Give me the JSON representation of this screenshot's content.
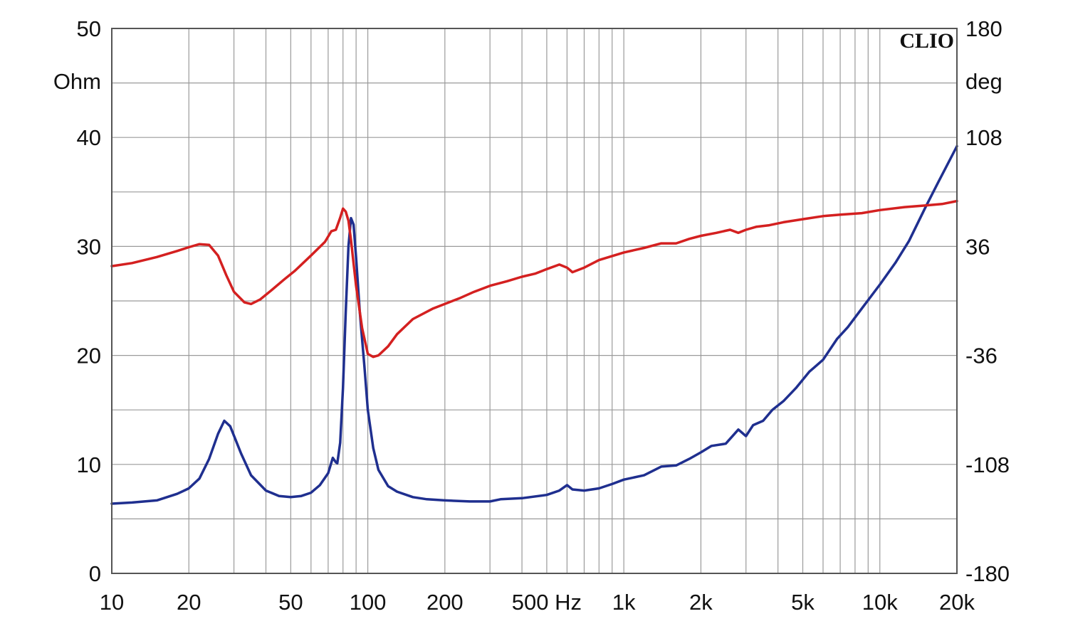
{
  "chart_data": {
    "type": "line",
    "watermark": "CLIO",
    "x_scale": "log",
    "xlim": [
      10,
      20000
    ],
    "x_ticks": [
      {
        "value": 10,
        "label": "10"
      },
      {
        "value": 20,
        "label": "20"
      },
      {
        "value": 50,
        "label": "50"
      },
      {
        "value": 100,
        "label": "100"
      },
      {
        "value": 200,
        "label": "200"
      },
      {
        "value": 500,
        "label": "500 Hz"
      },
      {
        "value": 1000,
        "label": "1k"
      },
      {
        "value": 2000,
        "label": "2k"
      },
      {
        "value": 5000,
        "label": "5k"
      },
      {
        "value": 10000,
        "label": "10k"
      },
      {
        "value": 20000,
        "label": "20k"
      }
    ],
    "y_left": {
      "unit_label": "Ohm",
      "ylim": [
        0,
        50
      ],
      "ticks": [
        0,
        10,
        20,
        30,
        40,
        50
      ],
      "labels": [
        "0",
        "10",
        "20",
        "30",
        "40",
        "50"
      ]
    },
    "y_right": {
      "unit_label": "deg",
      "ylim": [
        -180,
        180
      ],
      "ticks": [
        -180,
        -108,
        -36,
        36,
        108,
        180
      ],
      "labels": [
        "-180",
        "-108",
        "-36",
        "36",
        "108",
        "180"
      ]
    },
    "grid": true,
    "series": [
      {
        "axis": "left",
        "color": "#1f2f8f",
        "points": [
          [
            10,
            6.4
          ],
          [
            12,
            6.5
          ],
          [
            15,
            6.7
          ],
          [
            18,
            7.3
          ],
          [
            20,
            7.8
          ],
          [
            22,
            8.7
          ],
          [
            24,
            10.5
          ],
          [
            26,
            12.8
          ],
          [
            27.5,
            14
          ],
          [
            29,
            13.5
          ],
          [
            32,
            11
          ],
          [
            35,
            9
          ],
          [
            40,
            7.6
          ],
          [
            45,
            7.1
          ],
          [
            50,
            7
          ],
          [
            55,
            7.1
          ],
          [
            60,
            7.4
          ],
          [
            65,
            8.1
          ],
          [
            70,
            9.2
          ],
          [
            73,
            10.6
          ],
          [
            75,
            10.2
          ],
          [
            76,
            10.1
          ],
          [
            78,
            12
          ],
          [
            80,
            17
          ],
          [
            82,
            24
          ],
          [
            84,
            30
          ],
          [
            86,
            32.6
          ],
          [
            88,
            32
          ],
          [
            90,
            29
          ],
          [
            93,
            24
          ],
          [
            97,
            19
          ],
          [
            100,
            15
          ],
          [
            105,
            11.5
          ],
          [
            110,
            9.5
          ],
          [
            120,
            8
          ],
          [
            130,
            7.5
          ],
          [
            150,
            7
          ],
          [
            170,
            6.8
          ],
          [
            200,
            6.7
          ],
          [
            250,
            6.6
          ],
          [
            300,
            6.6
          ],
          [
            330,
            6.8
          ],
          [
            400,
            6.9
          ],
          [
            500,
            7.2
          ],
          [
            560,
            7.6
          ],
          [
            600,
            8.1
          ],
          [
            630,
            7.7
          ],
          [
            700,
            7.6
          ],
          [
            800,
            7.8
          ],
          [
            900,
            8.2
          ],
          [
            1000,
            8.6
          ],
          [
            1200,
            9
          ],
          [
            1400,
            9.8
          ],
          [
            1600,
            9.9
          ],
          [
            1800,
            10.5
          ],
          [
            2000,
            11.1
          ],
          [
            2200,
            11.7
          ],
          [
            2500,
            11.9
          ],
          [
            2800,
            13.2
          ],
          [
            3000,
            12.6
          ],
          [
            3200,
            13.6
          ],
          [
            3500,
            14
          ],
          [
            3800,
            15
          ],
          [
            4200,
            15.8
          ],
          [
            4700,
            17
          ],
          [
            5300,
            18.5
          ],
          [
            6000,
            19.6
          ],
          [
            6800,
            21.5
          ],
          [
            7500,
            22.6
          ],
          [
            8500,
            24.3
          ],
          [
            10000,
            26.5
          ],
          [
            11500,
            28.5
          ],
          [
            13000,
            30.5
          ],
          [
            15000,
            33.5
          ],
          [
            17000,
            36
          ],
          [
            20000,
            39.2
          ]
        ]
      },
      {
        "axis": "right",
        "color": "#d42020",
        "points": [
          [
            10,
            23
          ],
          [
            12,
            25
          ],
          [
            15,
            29
          ],
          [
            18,
            33
          ],
          [
            20,
            35.5
          ],
          [
            22,
            37.5
          ],
          [
            24,
            37
          ],
          [
            26,
            30
          ],
          [
            28,
            17
          ],
          [
            30,
            6
          ],
          [
            33,
            -1
          ],
          [
            35,
            -2
          ],
          [
            38,
            1
          ],
          [
            42,
            7
          ],
          [
            47,
            14
          ],
          [
            52,
            20
          ],
          [
            60,
            30
          ],
          [
            68,
            39
          ],
          [
            72,
            46
          ],
          [
            75,
            47
          ],
          [
            78,
            55
          ],
          [
            80,
            61
          ],
          [
            82,
            59
          ],
          [
            84,
            53
          ],
          [
            86,
            40
          ],
          [
            90,
            10
          ],
          [
            95,
            -18
          ],
          [
            100,
            -35
          ],
          [
            105,
            -37
          ],
          [
            110,
            -36
          ],
          [
            120,
            -30
          ],
          [
            130,
            -22
          ],
          [
            150,
            -12
          ],
          [
            180,
            -5
          ],
          [
            200,
            -2
          ],
          [
            230,
            2
          ],
          [
            260,
            6
          ],
          [
            300,
            10
          ],
          [
            350,
            13
          ],
          [
            400,
            16
          ],
          [
            450,
            18
          ],
          [
            500,
            21
          ],
          [
            560,
            24
          ],
          [
            600,
            22
          ],
          [
            630,
            19
          ],
          [
            700,
            22
          ],
          [
            800,
            27
          ],
          [
            1000,
            32
          ],
          [
            1200,
            35
          ],
          [
            1400,
            38
          ],
          [
            1600,
            38
          ],
          [
            1800,
            41
          ],
          [
            2000,
            43
          ],
          [
            2300,
            45
          ],
          [
            2600,
            47
          ],
          [
            2800,
            45
          ],
          [
            3000,
            47
          ],
          [
            3300,
            49
          ],
          [
            3700,
            50
          ],
          [
            4200,
            52
          ],
          [
            5000,
            54
          ],
          [
            6000,
            56
          ],
          [
            7000,
            57
          ],
          [
            8500,
            58
          ],
          [
            10000,
            60
          ],
          [
            12500,
            62
          ],
          [
            15000,
            63
          ],
          [
            17500,
            64
          ],
          [
            20000,
            66
          ]
        ]
      }
    ]
  }
}
